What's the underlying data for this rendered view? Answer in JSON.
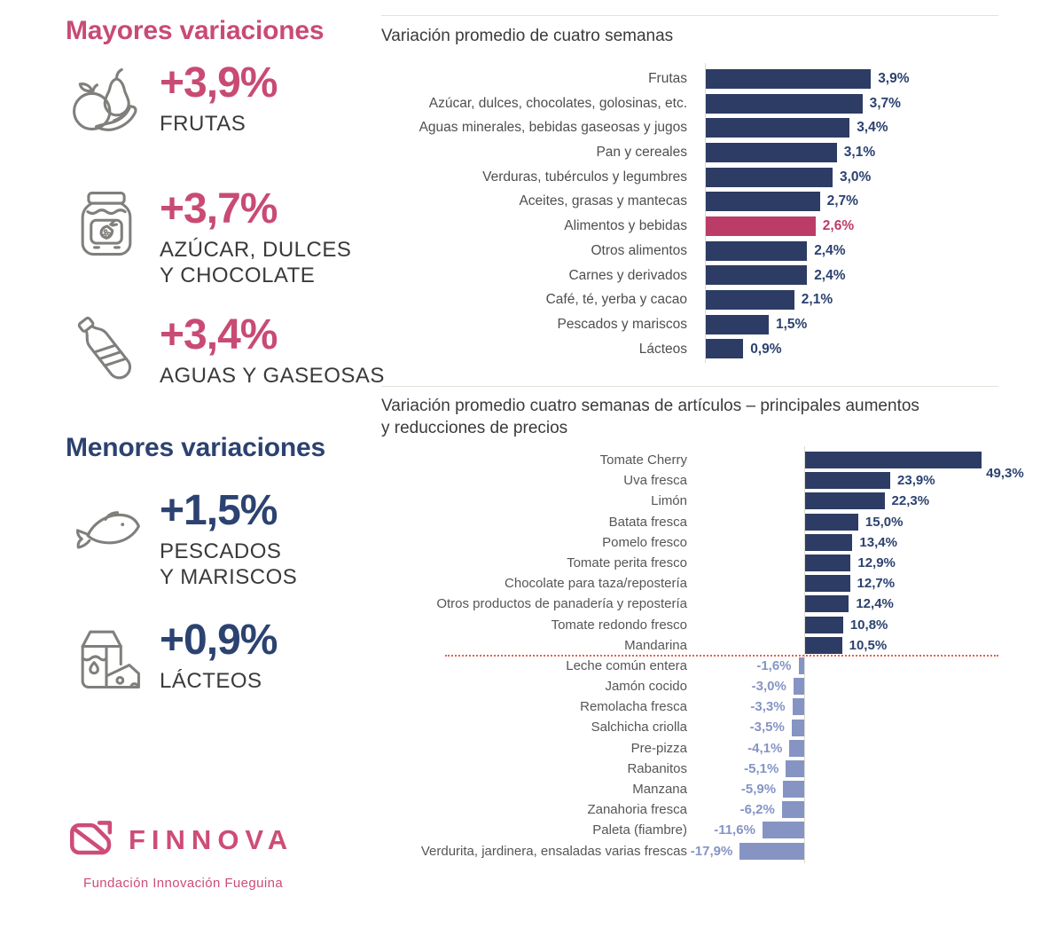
{
  "colors": {
    "accent_pink": "#c84b74",
    "accent_navy": "#2c4270",
    "bar_navy": "#2d3c64",
    "bar_highlight_pink": "#bc3c68",
    "bar_periwinkle": "#8694c4",
    "separator_red": "#e2614f",
    "icon_gray": "#807f7c"
  },
  "left_panel": {
    "sections": [
      {
        "heading": "Mayores variaciones",
        "items": [
          {
            "icon": "fruits-icon",
            "value": "+3,9%",
            "label_lines": [
              "FRUTAS"
            ]
          },
          {
            "icon": "jam-jar-icon",
            "value": "+3,7%",
            "label_lines": [
              "AZÚCAR, DULCES",
              "Y CHOCOLATE"
            ]
          },
          {
            "icon": "water-bottle-icon",
            "value": "+3,4%",
            "label_lines": [
              "AGUAS Y GASEOSAS"
            ]
          }
        ]
      },
      {
        "heading": "Menores variaciones",
        "items": [
          {
            "icon": "fish-icon",
            "value": "+1,5%",
            "label_lines": [
              "PESCADOS",
              "Y MARISCOS"
            ]
          },
          {
            "icon": "milk-dairy-icon",
            "value": "+0,9%",
            "label_lines": [
              "LÁCTEOS"
            ]
          }
        ]
      }
    ],
    "logo": {
      "name": "FINNOVA",
      "tagline": "Fundación Innovación Fueguina"
    }
  },
  "chart_data": [
    {
      "type": "bar",
      "orientation": "horizontal",
      "title": "Variación promedio de cuatro semanas",
      "title_lines": [
        "Variación promedio de cuatro semanas"
      ],
      "unit": "%",
      "categories": [
        "Frutas",
        "Azúcar, dulces, chocolates, golosinas, etc.",
        "Aguas minerales, bebidas gaseosas y jugos",
        "Pan y cereales",
        "Verduras, tubérculos y legumbres",
        "Aceites, grasas y mantecas",
        "Alimentos y bebidas",
        "Otros alimentos",
        "Carnes y derivados",
        "Café, té, yerba y  cacao",
        "Pescados y mariscos",
        "Lácteos"
      ],
      "values": [
        3.9,
        3.7,
        3.4,
        3.1,
        3.0,
        2.7,
        2.6,
        2.4,
        2.4,
        2.1,
        1.5,
        0.9
      ],
      "value_labels": [
        "3,9%",
        "3,7%",
        "3,4%",
        "3,1%",
        "3,0%",
        "2,7%",
        "2,6%",
        "2,4%",
        "2,4%",
        "2,1%",
        "1,5%",
        "0,9%"
      ],
      "highlight_index": 6,
      "xlim": [
        0,
        4.2
      ],
      "grid": false,
      "legend": false,
      "bar_color": "#2d3c64",
      "highlight_color": "#bc3c68",
      "value_color": "#2c4270"
    },
    {
      "type": "bar",
      "orientation": "horizontal",
      "title": "Variación promedio cuatro semanas de artículos – principales aumentos y reducciones de precios",
      "title_lines": [
        "Variación promedio cuatro semanas de artículos – principales aumentos",
        "y reducciones de precios"
      ],
      "unit": "%",
      "categories": [
        "Tomate Cherry",
        "Uva fresca",
        "Limón",
        "Batata fresca",
        "Pomelo fresco",
        "Tomate perita fresco",
        "Chocolate para taza/repostería",
        "Otros productos de panadería y repostería",
        "Tomate redondo fresco",
        "Mandarina",
        "Leche común entera",
        "Jamón cocido",
        "Remolacha fresca",
        "Salchicha criolla",
        "Pre-pizza",
        "Rabanitos",
        "Manzana",
        "Zanahoria fresca",
        "Paleta (fiambre)",
        "Verdurita, jardinera, ensaladas varias frescas"
      ],
      "values": [
        49.3,
        23.9,
        22.3,
        15.0,
        13.4,
        12.9,
        12.7,
        12.4,
        10.8,
        10.5,
        -1.6,
        -3.0,
        -3.3,
        -3.5,
        -4.1,
        -5.1,
        -5.9,
        -6.2,
        -11.6,
        -17.9
      ],
      "value_labels": [
        "49,3%",
        "23,9%",
        "22,3%",
        "15,0%",
        "13,4%",
        "12,9%",
        "12,7%",
        "12,4%",
        "10,8%",
        "10,5%",
        "-1,6%",
        "-3,0%",
        "-3,3%",
        "-3,5%",
        "-4,1%",
        "-5,1%",
        "-5,9%",
        "-6,2%",
        "-11,6%",
        "-17,9%"
      ],
      "xlim": [
        -20,
        50
      ],
      "grid": false,
      "legend": false,
      "bar_color": "#2d3c64",
      "negative_color": "#8694c4",
      "value_color": "#2c4270",
      "separator_after_index": 9,
      "value_label_below_index": 0
    }
  ]
}
